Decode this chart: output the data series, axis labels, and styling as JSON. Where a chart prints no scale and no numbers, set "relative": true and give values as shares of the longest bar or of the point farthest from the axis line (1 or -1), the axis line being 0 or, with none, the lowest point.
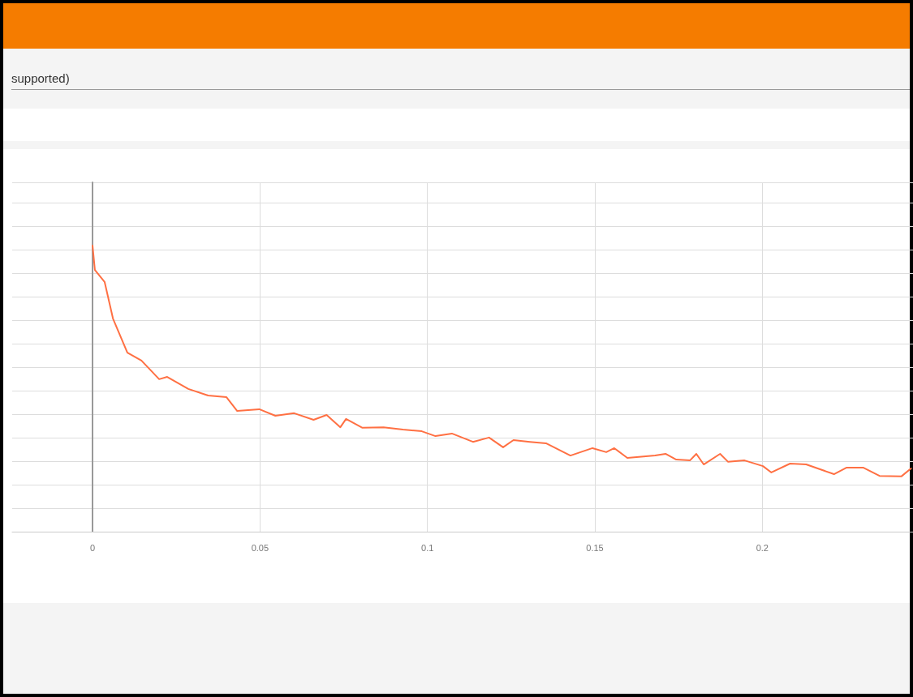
{
  "chart_data": {
    "type": "line",
    "relative": true,
    "grid": true,
    "tick_labels": "x",
    "line_style": "solid",
    "marker": "none",
    "annotations": [
      "supported)"
    ],
    "xlim": [
      -0.024,
      0.245
    ],
    "xticks": [
      0,
      0.05,
      0.1,
      0.15,
      0.2
    ],
    "series": [
      {
        "color": "#ff7043",
        "x": [
          0,
          0.0007,
          0.0036,
          0.0061,
          0.0104,
          0.0146,
          0.0199,
          0.0223,
          0.0286,
          0.0345,
          0.04,
          0.0432,
          0.0498,
          0.0546,
          0.0602,
          0.066,
          0.0699,
          0.074,
          0.0757,
          0.0806,
          0.0869,
          0.0927,
          0.0983,
          0.1024,
          0.1073,
          0.1136,
          0.1184,
          0.1226,
          0.1257,
          0.1306,
          0.1354,
          0.1403,
          0.1427,
          0.1493,
          0.1534,
          0.1558,
          0.1597,
          0.168,
          0.1711,
          0.1743,
          0.1784,
          0.1803,
          0.1825,
          0.1874,
          0.1898,
          0.1947,
          0.2002,
          0.2027,
          0.2083,
          0.2131,
          0.2214,
          0.2252,
          0.2301,
          0.235,
          0.2415,
          0.2444
        ],
        "values": [
          1,
          0.915,
          0.873,
          0.745,
          0.626,
          0.598,
          0.533,
          0.541,
          0.499,
          0.476,
          0.47,
          0.422,
          0.428,
          0.405,
          0.414,
          0.391,
          0.408,
          0.365,
          0.394,
          0.363,
          0.365,
          0.357,
          0.351,
          0.334,
          0.343,
          0.314,
          0.329,
          0.295,
          0.32,
          0.314,
          0.309,
          0.28,
          0.266,
          0.292,
          0.278,
          0.292,
          0.258,
          0.266,
          0.272,
          0.252,
          0.249,
          0.272,
          0.235,
          0.272,
          0.244,
          0.249,
          0.229,
          0.207,
          0.238,
          0.235,
          0.201,
          0.224,
          0.224,
          0.195,
          0.193,
          0.221
        ]
      }
    ]
  }
}
